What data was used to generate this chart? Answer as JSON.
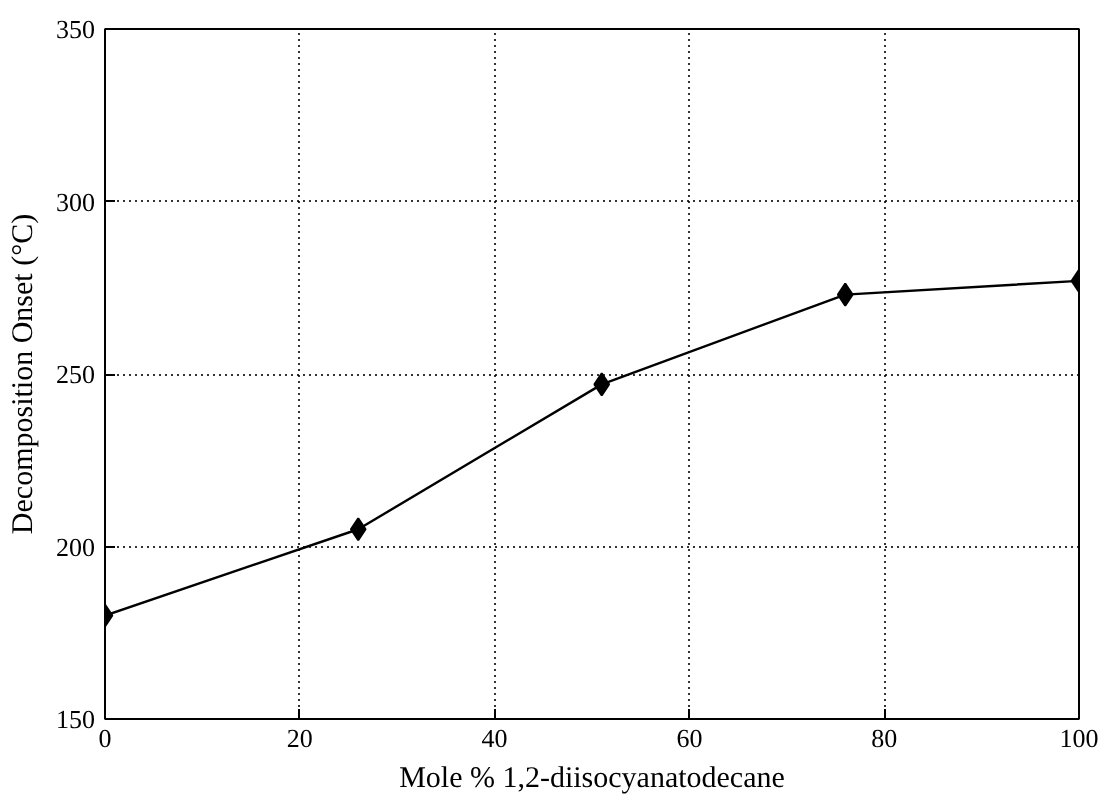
{
  "chart_data": {
    "type": "line",
    "xlabel": "Mole % 1,2-diisocyanatodecane",
    "ylabel": "Decomposition Onset (°C)",
    "x": [
      0,
      26,
      51,
      76,
      100
    ],
    "series": [
      {
        "color": "#000000",
        "values": [
          180,
          205,
          247,
          273,
          277
        ]
      }
    ],
    "xlim": [
      0,
      100
    ],
    "xticks": [
      0,
      20,
      40,
      60,
      80,
      100
    ],
    "ylim": [
      150,
      350
    ],
    "yticks": [
      150,
      200,
      250,
      300,
      350
    ],
    "grid": true,
    "marker": "diamond",
    "line_style": "solid"
  }
}
